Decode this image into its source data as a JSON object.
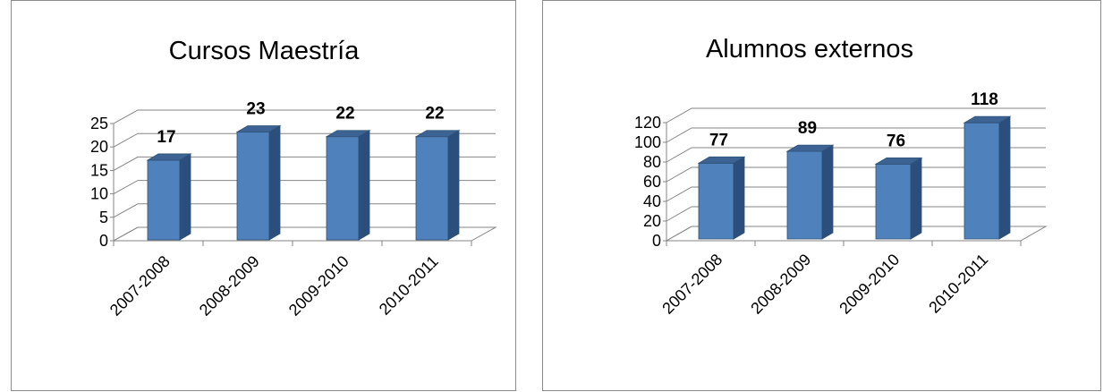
{
  "chart_data": [
    {
      "type": "bar",
      "title": "Cursos Maestría",
      "categories": [
        "2007-2008",
        "2008-2009",
        "2009-2010",
        "2010-2011"
      ],
      "values": [
        17,
        23,
        22,
        22
      ],
      "data_labels": [
        "17",
        "23",
        "22",
        "22"
      ],
      "yticks": [
        "0",
        "5",
        "10",
        "15",
        "20",
        "25"
      ],
      "ylim": [
        0,
        25
      ],
      "grid": true,
      "style": "3d-column",
      "colors": {
        "front": "#4f81bd",
        "side": "#2b4e7c",
        "top": "#3d6394"
      }
    },
    {
      "type": "bar",
      "title": "Alumnos externos",
      "categories": [
        "2007-2008",
        "2008-2009",
        "2009-2010",
        "2010-2011"
      ],
      "values": [
        77,
        89,
        76,
        118
      ],
      "data_labels": [
        "77",
        "89",
        "76",
        "118"
      ],
      "yticks": [
        "0",
        "20",
        "40",
        "60",
        "80",
        "100",
        "120"
      ],
      "ylim": [
        0,
        120
      ],
      "grid": true,
      "style": "3d-column",
      "colors": {
        "front": "#4f81bd",
        "side": "#2b4e7c",
        "top": "#3d6394"
      }
    }
  ]
}
